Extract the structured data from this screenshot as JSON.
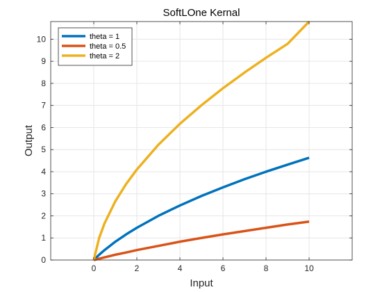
{
  "chart_data": {
    "type": "line",
    "title": "SoftLOne Kernal",
    "xlabel": "Input",
    "ylabel": "Output",
    "xlim": [
      -2,
      12
    ],
    "ylim": [
      0,
      10.8
    ],
    "xticks": [
      0,
      2,
      4,
      6,
      8,
      10
    ],
    "yticks": [
      0,
      1,
      2,
      3,
      4,
      5,
      6,
      7,
      8,
      9,
      10
    ],
    "grid": true,
    "legend_position": "top-left",
    "x": [
      0,
      0.25,
      0.5,
      1,
      1.5,
      2,
      3,
      4,
      5,
      6,
      7,
      8,
      9,
      10
    ],
    "series": [
      {
        "name": "theta = 1",
        "color": "#0072BD",
        "values": [
          0,
          0.24,
          0.45,
          0.83,
          1.16,
          1.46,
          2.0,
          2.47,
          2.9,
          3.29,
          3.66,
          4.0,
          4.32,
          4.63
        ]
      },
      {
        "name": "theta = 0.5",
        "color": "#D95319",
        "values": [
          0,
          0.06,
          0.12,
          0.24,
          0.34,
          0.45,
          0.64,
          0.83,
          1.0,
          1.16,
          1.31,
          1.46,
          1.61,
          1.74
        ]
      },
      {
        "name": "theta = 2",
        "color": "#EDB120",
        "values": [
          0,
          1.0,
          1.66,
          2.66,
          3.44,
          4.1,
          5.22,
          6.17,
          7.01,
          7.78,
          8.49,
          9.16,
          9.79,
          10.8
        ]
      }
    ]
  }
}
